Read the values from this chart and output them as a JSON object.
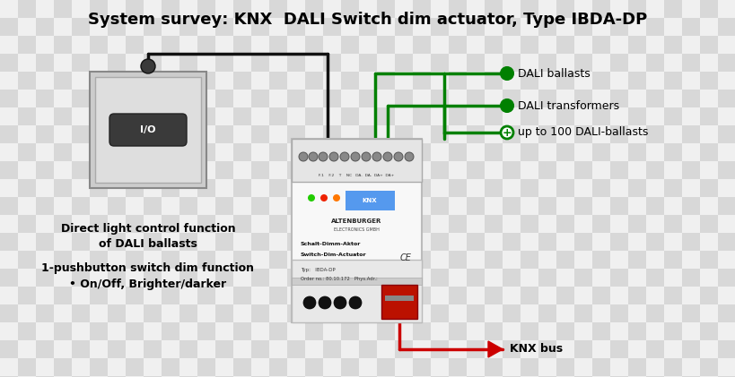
{
  "title": "System survey: KNX  DALI Switch dim actuator, Type IBDA-DP",
  "title_fontsize": 13,
  "title_fontweight": "bold",
  "text_left_1": "Direct light control function",
  "text_left_2": "of DALI ballasts",
  "text_left_3": "1-pushbutton switch dim function",
  "text_left_4": "• On/Off, Brighter/darker",
  "label_dali_ballasts": "DALI ballasts",
  "label_dali_transformers": "DALI transformers",
  "label_dali_100": "up to 100 DALI-ballasts",
  "label_knx_bus": "KNX bus",
  "green_color": "#008000",
  "red_color": "#cc0000",
  "dark_color": "#111111",
  "checker_light": "#f0f0f0",
  "checker_dark": "#d8d8d8",
  "sq": 20,
  "fig_w": 8.2,
  "fig_h": 4.21,
  "dpi": 100
}
